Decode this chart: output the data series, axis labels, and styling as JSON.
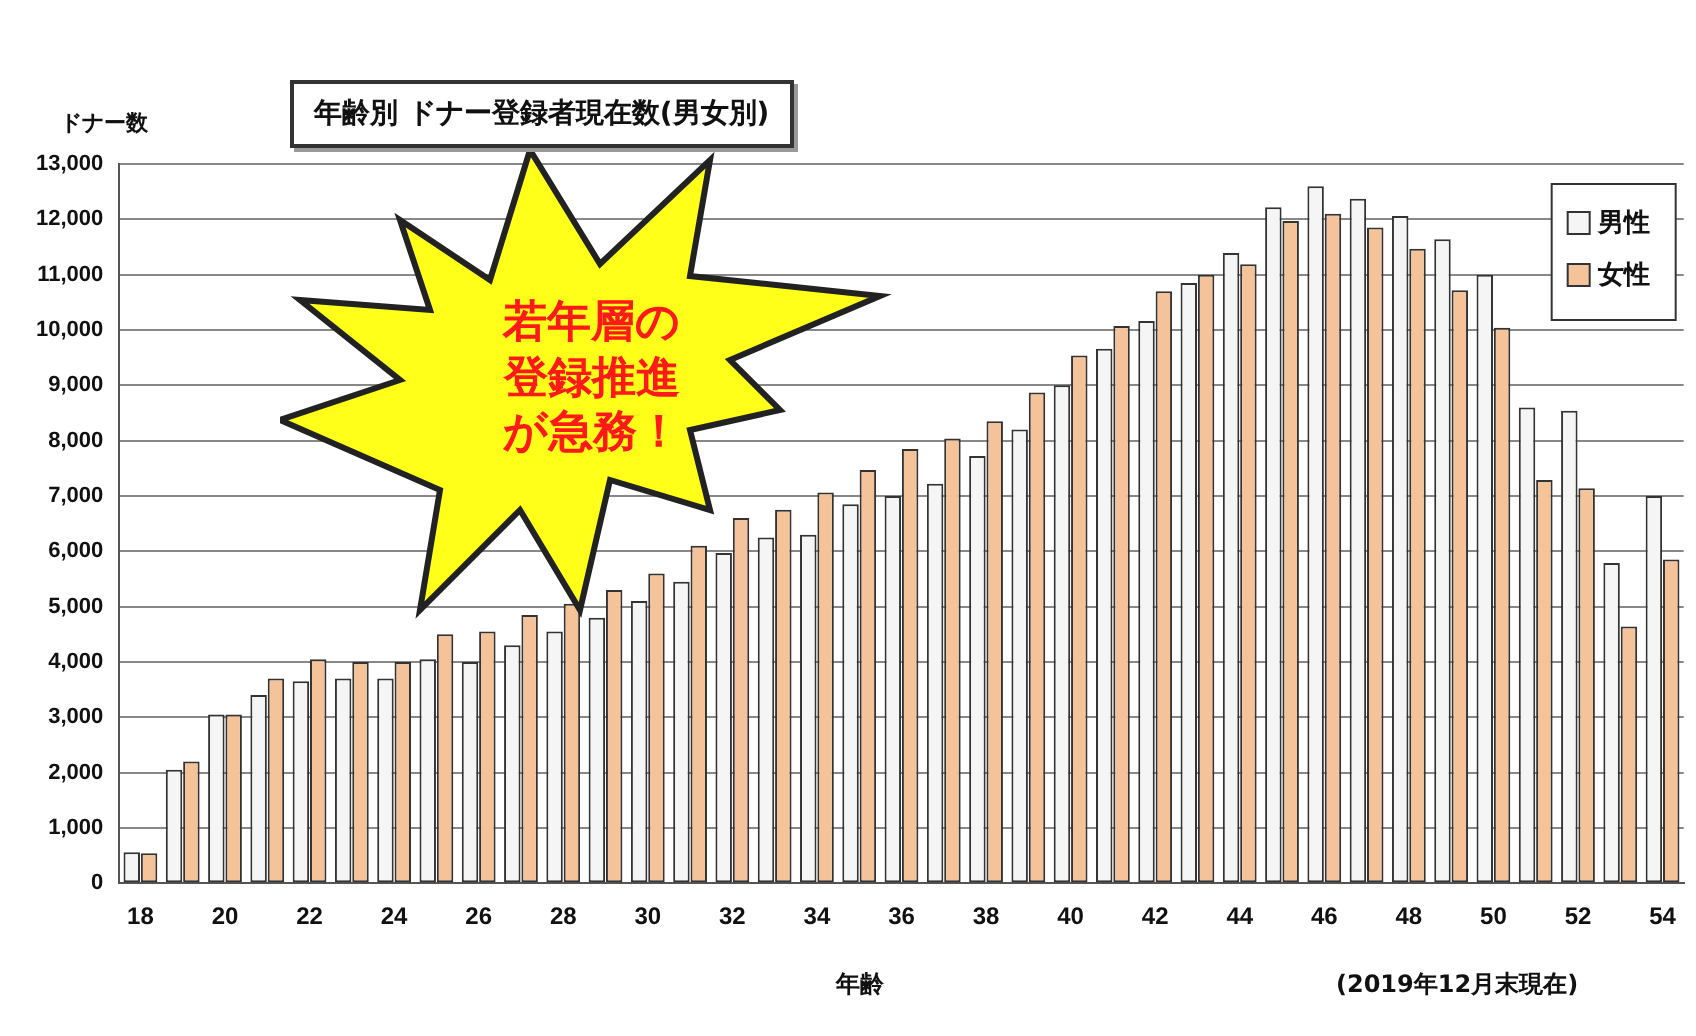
{
  "chart_data": {
    "type": "bar",
    "title": "年齢別 ドナー登録者現在数(男女別)",
    "ylabel": "ドナー数",
    "xlabel": "年齢",
    "annotations": [
      "若年層の登録推進が急務！",
      "(2019年12月末現在)"
    ],
    "categories": [
      "18",
      null,
      "20",
      null,
      "22",
      null,
      "24",
      null,
      "26",
      null,
      "28",
      null,
      "30",
      null,
      "32",
      null,
      "34",
      null,
      "36",
      null,
      "38",
      null,
      "40",
      null,
      "42",
      null,
      "44",
      null,
      "46",
      null,
      "48",
      null,
      "50",
      null,
      "52",
      null,
      "54"
    ],
    "series": [
      {
        "name": "男性",
        "color": "#f5f5f5",
        "values": [
          560,
          2050,
          3050,
          3400,
          3650,
          3700,
          3700,
          4050,
          4000,
          4300,
          4550,
          4800,
          5100,
          5450,
          5970,
          6250,
          6300,
          6850,
          7000,
          7220,
          7720,
          8200,
          9000,
          9660,
          10160,
          10850,
          11390,
          12220,
          12600,
          12370,
          12060,
          11640,
          11000,
          8600,
          8540,
          5790,
          7000
        ]
      },
      {
        "name": "女性",
        "color": "#f4c39a",
        "values": [
          540,
          2200,
          3050,
          3700,
          4050,
          4000,
          4000,
          4500,
          4550,
          4850,
          5050,
          5300,
          5600,
          6100,
          6600,
          6750,
          7060,
          7470,
          7850,
          8040,
          8350,
          8870,
          9540,
          10070,
          10700,
          11000,
          11190,
          11970,
          12100,
          11850,
          11470,
          10720,
          10040,
          7290,
          7140,
          4640,
          5850
        ]
      }
    ],
    "ylim": [
      0,
      13000
    ],
    "yticks": [
      0,
      {
        "value": 1000,
        "label": "1,000"
      },
      {
        "value": 2000,
        "label": "2,000"
      },
      {
        "value": 3000,
        "label": "3,000"
      },
      {
        "value": 4000,
        "label": "4,000"
      },
      {
        "value": 5000,
        "label": "5,000"
      },
      {
        "value": 6000,
        "label": "6,000"
      },
      {
        "value": 7000,
        "label": "7,000"
      },
      {
        "value": 8000,
        "label": "8,000"
      },
      {
        "value": 9000,
        "label": "9,000"
      },
      {
        "value": 10000,
        "label": "10,000"
      },
      {
        "value": 11000,
        "label": "11,000"
      },
      {
        "value": 12000,
        "label": "12,000"
      },
      {
        "value": 13000,
        "label": "13,000"
      }
    ],
    "grid": "y",
    "legend": "top right"
  }
}
